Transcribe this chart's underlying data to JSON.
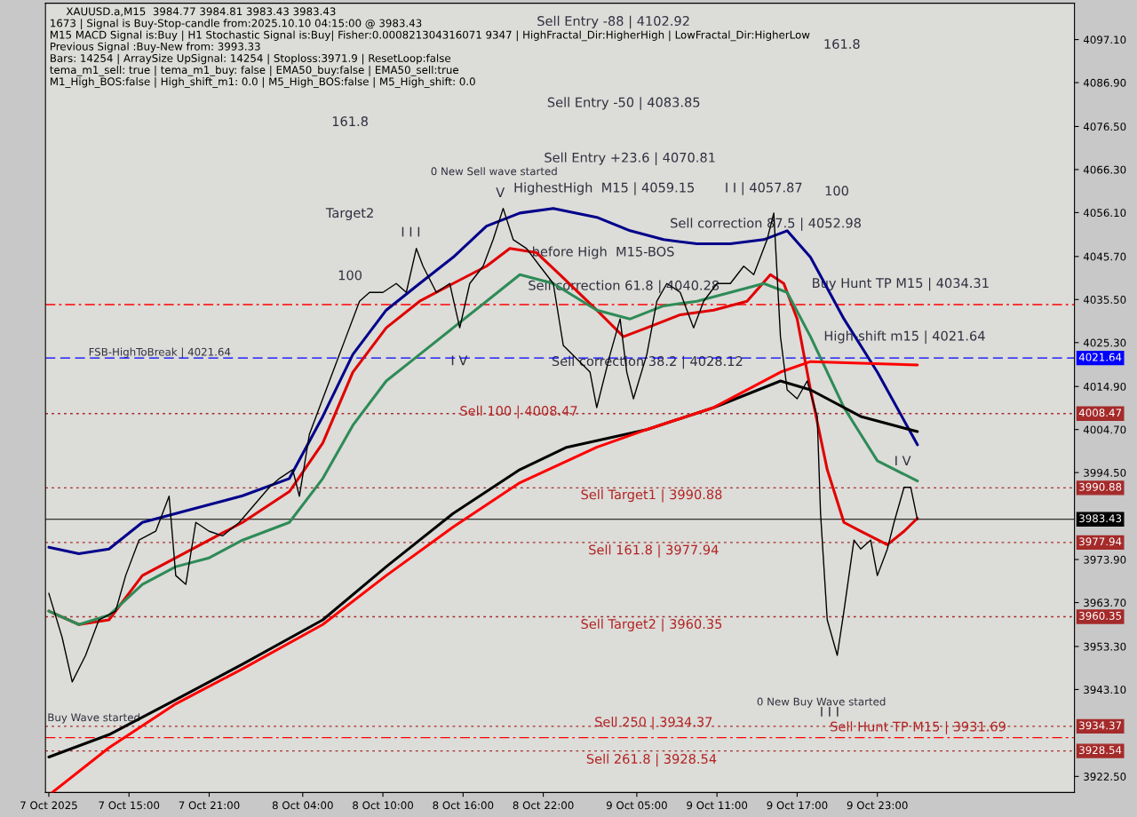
{
  "chart_data": {
    "type": "line",
    "title": "XAUUSD.a,M15  3984.77 3984.81 3983.43 3983.43",
    "annotations": [
      "1673 | Signal is Buy-Stop-candle from:2025.10.10 04:15:00 @ 3983.43",
      "M15 MACD Signal is:Buy | H1 Stochastic Signal is:Buy| Fisher:0.000821304316071 9347 | HighFractal_Dir:HigherHigh | LowFractal_Dir:HigherLow",
      "Previous Signal :Buy-New from: 3993.33",
      "Bars: 14254 | ArraySize UpSignal: 14254 | Stoploss:3971.9 | ResetLoop:false",
      "tema_m1_sell: true | tema_m1_buy: false | EMA50_buy:false | EMA50_sell:true",
      "M1_High_BOS:false | High_shift_m1: 0.0 | M5_High_BOS:false | M5_High_shift: 0.0",
      "Sell Entry -88 | 4102.92",
      "Sell Entry -50 | 4083.85",
      "Sell Entry +23.6 | 4070.81",
      "HighestHigh  M15 | 4059.15",
      "I I | 4057.87",
      "Sell correction 87.5 | 4052.98",
      "Sell correction 61.8 | 4040.28",
      "Sell correction 38.2 | 4028.12",
      "before High  M15-BOS",
      "0 New Sell wave started",
      "0 New Buy Wave started",
      "Buy Wave started",
      "Target2",
      "161.8",
      "161.8",
      "100",
      "100",
      "I I I",
      "I V",
      "V",
      "I I I",
      "I V",
      "High-shift m15 | 4021.64",
      "FSB-HighToBreak | 4021.64",
      "Buy Hunt TP M15 | 4034.31",
      "Sell 100 | 4008.47",
      "Sell Target1 | 3990.88",
      "Sell 161.8 | 3977.94",
      "Sell Target2 | 3960.35",
      "Sell 250 | 3934.37",
      "Sell Hunt TP M15 | 3931.69",
      "Sell 261.8 | 3928.54"
    ],
    "xlim": [
      "2025-10-07T08:45",
      "2025-10-10T13:45"
    ],
    "xticks": [
      {
        "value": "2025-10-07T09:00",
        "label": "7 Oct 2025"
      },
      {
        "value": "2025-10-07T15:00",
        "label": "7 Oct 15:00"
      },
      {
        "value": "2025-10-07T21:00",
        "label": "7 Oct 21:00"
      },
      {
        "value": "2025-10-08T04:00",
        "label": "8 Oct 04:00"
      },
      {
        "value": "2025-10-08T10:00",
        "label": "8 Oct 10:00"
      },
      {
        "value": "2025-10-08T16:00",
        "label": "8 Oct 16:00"
      },
      {
        "value": "2025-10-08T22:00",
        "label": "8 Oct 22:00"
      },
      {
        "value": "2025-10-09T05:00",
        "label": "9 Oct 05:00"
      },
      {
        "value": "2025-10-09T11:00",
        "label": "9 Oct 11:00"
      },
      {
        "value": "2025-10-09T17:00",
        "label": "9 Oct 17:00"
      },
      {
        "value": "2025-10-09T23:00",
        "label": "9 Oct 23:00"
      }
    ],
    "ylim": [
      3918.7,
      4105.7
    ],
    "yticks": [
      {
        "value": 4097.1,
        "label": "4097.10"
      },
      {
        "value": 4086.9,
        "label": "4086.90"
      },
      {
        "value": 4076.5,
        "label": "4076.50"
      },
      {
        "value": 4066.3,
        "label": "4066.30"
      },
      {
        "value": 4056.1,
        "label": "4056.10"
      },
      {
        "value": 4045.7,
        "label": "4045.70"
      },
      {
        "value": 4035.5,
        "label": "4035.50"
      },
      {
        "value": 4025.3,
        "label": "4025.30"
      },
      {
        "value": 4014.9,
        "label": "4014.90"
      },
      {
        "value": 4004.7,
        "label": "4004.70"
      },
      {
        "value": 3994.5,
        "label": "3994.50"
      },
      {
        "value": 3973.9,
        "label": "3973.90"
      },
      {
        "value": 3963.7,
        "label": "3963.70"
      },
      {
        "value": 3953.3,
        "label": "3953.30"
      },
      {
        "value": 3943.1,
        "label": "3943.10"
      },
      {
        "value": 3922.5,
        "label": "3922.50"
      }
    ],
    "grid": false,
    "series": [
      {
        "color": "#000000",
        "x": [
          "2025-10-07T09:00",
          "2025-10-07T10:00",
          "2025-10-07T10:45",
          "2025-10-07T11:45",
          "2025-10-07T12:45",
          "2025-10-07T14:00",
          "2025-10-07T14:45",
          "2025-10-07T15:45",
          "2025-10-07T17:00",
          "2025-10-07T18:00",
          "2025-10-07T18:30",
          "2025-10-07T19:15",
          "2025-10-07T20:00",
          "2025-10-07T21:00",
          "2025-10-07T22:00",
          "2025-10-07T23:15",
          "2025-10-08T01:30",
          "2025-10-08T02:15",
          "2025-10-08T03:15",
          "2025-10-08T03:45",
          "2025-10-08T04:30",
          "2025-10-08T05:30",
          "2025-10-08T06:15",
          "2025-10-08T07:15",
          "2025-10-08T08:15",
          "2025-10-08T09:00",
          "2025-10-08T10:00",
          "2025-10-08T11:00",
          "2025-10-08T11:45",
          "2025-10-08T12:30",
          "2025-10-08T13:00",
          "2025-10-08T14:00",
          "2025-10-08T15:00",
          "2025-10-08T15:45",
          "2025-10-08T16:30",
          "2025-10-08T17:30",
          "2025-10-08T18:15",
          "2025-10-08T19:00",
          "2025-10-08T19:45",
          "2025-10-08T20:45",
          "2025-10-08T21:45",
          "2025-10-08T22:45",
          "2025-10-08T23:30",
          "2025-10-09T01:30",
          "2025-10-09T02:00",
          "2025-10-09T03:00",
          "2025-10-09T03:45",
          "2025-10-09T04:15",
          "2025-10-09T04:45",
          "2025-10-09T05:45",
          "2025-10-09T06:30",
          "2025-10-09T07:15",
          "2025-10-09T08:15",
          "2025-10-09T09:15",
          "2025-10-09T10:00",
          "2025-10-09T11:00",
          "2025-10-09T12:00",
          "2025-10-09T13:00",
          "2025-10-09T13:45",
          "2025-10-09T14:45",
          "2025-10-09T15:15",
          "2025-10-09T15:45",
          "2025-10-09T16:15",
          "2025-10-09T17:00",
          "2025-10-09T17:45",
          "2025-10-09T18:30",
          "2025-10-09T18:45",
          "2025-10-09T19:15",
          "2025-10-09T20:00",
          "2025-10-09T20:30",
          "2025-10-09T21:15",
          "2025-10-09T21:45",
          "2025-10-09T22:30",
          "2025-10-09T23:00",
          "2025-10-09T23:45",
          "2025-10-10T00:15",
          "2025-10-10T01:00",
          "2025-10-10T01:30",
          "2025-10-10T02:00"
        ],
        "values": [
          3965.9,
          3955.4,
          3944.9,
          3951.2,
          3959.6,
          3961.7,
          3970.1,
          3978.5,
          3980.6,
          3988.9,
          3970.1,
          3968.0,
          3982.7,
          3980.6,
          3979.5,
          3982.7,
          3991.0,
          3993.1,
          3995.2,
          3988.9,
          4003.6,
          4012.0,
          4018.3,
          4026.7,
          4035.1,
          4037.2,
          4037.2,
          4039.3,
          4037.2,
          4047.6,
          4043.4,
          4037.2,
          4039.3,
          4028.8,
          4039.3,
          4043.4,
          4049.7,
          4057.1,
          4049.7,
          4047.6,
          4043.4,
          4039.3,
          4024.6,
          4018.3,
          4009.9,
          4022.5,
          4030.9,
          4018.3,
          4012.0,
          4022.5,
          4035.1,
          4039.3,
          4037.2,
          4028.8,
          4035.1,
          4039.3,
          4039.3,
          4043.4,
          4041.4,
          4049.7,
          4056.0,
          4026.7,
          4014.1,
          4012.0,
          4016.2,
          4007.8,
          3984.8,
          3959.6,
          3951.2,
          3961.7,
          3978.5,
          3976.4,
          3978.5,
          3970.1,
          3976.4,
          3982.7,
          3991.0,
          3991.0,
          3983.3
        ]
      },
      {
        "color": "#e00000",
        "x": [
          "2025-10-07T09:00",
          "2025-10-07T11:15",
          "2025-10-07T13:30",
          "2025-10-07T16:00",
          "2025-10-07T18:30",
          "2025-10-07T21:00",
          "2025-10-07T23:30",
          "2025-10-08T03:00",
          "2025-10-08T05:30",
          "2025-10-08T07:45",
          "2025-10-08T10:15",
          "2025-10-08T12:45",
          "2025-10-08T15:15",
          "2025-10-08T17:45",
          "2025-10-08T19:30",
          "2025-10-08T21:30",
          "2025-10-08T23:15",
          "2025-10-09T02:00",
          "2025-10-09T04:00",
          "2025-10-09T05:45",
          "2025-10-09T08:15",
          "2025-10-09T10:45",
          "2025-10-09T13:15",
          "2025-10-09T15:00",
          "2025-10-09T16:00",
          "2025-10-09T17:00",
          "2025-10-09T18:00",
          "2025-10-09T19:15",
          "2025-10-09T20:30",
          "2025-10-09T21:45",
          "2025-10-09T23:45",
          "2025-10-10T01:00",
          "2025-10-10T02:00"
        ],
        "values": [
          3961.7,
          3958.5,
          3959.6,
          3970.1,
          3974.3,
          3978.5,
          3982.7,
          3990.0,
          4001.5,
          4018.3,
          4028.8,
          4035.1,
          4039.3,
          4043.4,
          4047.6,
          4046.6,
          4041.4,
          4033.0,
          4026.7,
          4028.8,
          4031.9,
          4033.0,
          4035.1,
          4041.4,
          4039.3,
          4030.9,
          4014.1,
          3995.2,
          3982.7,
          3980.6,
          3977.4,
          3980.6,
          3983.7
        ]
      },
      {
        "color": "#00008b",
        "x": [
          "2025-10-07T09:00",
          "2025-10-07T11:15",
          "2025-10-07T13:30",
          "2025-10-07T16:00",
          "2025-10-07T18:30",
          "2025-10-07T21:00",
          "2025-10-07T23:30",
          "2025-10-08T03:00",
          "2025-10-08T05:30",
          "2025-10-08T07:45",
          "2025-10-08T10:15",
          "2025-10-08T12:45",
          "2025-10-08T15:15",
          "2025-10-08T17:45",
          "2025-10-08T20:15",
          "2025-10-08T22:45",
          "2025-10-09T02:00",
          "2025-10-09T04:30",
          "2025-10-09T07:00",
          "2025-10-09T09:30",
          "2025-10-09T12:00",
          "2025-10-09T14:30",
          "2025-10-09T16:15",
          "2025-10-09T18:00",
          "2025-10-09T20:30",
          "2025-10-09T23:00",
          "2025-10-10T02:00"
        ],
        "values": [
          3976.8,
          3975.3,
          3976.4,
          3982.7,
          3984.8,
          3986.9,
          3989.0,
          3993.1,
          4007.8,
          4022.5,
          4033.0,
          4039.3,
          4045.5,
          4052.9,
          4056.0,
          4057.1,
          4055.0,
          4051.8,
          4049.7,
          4048.7,
          4048.7,
          4049.7,
          4051.8,
          4045.5,
          4030.9,
          4018.3,
          4001.1
        ]
      },
      {
        "color": "#2e8b57",
        "x": [
          "2025-10-07T09:00",
          "2025-10-07T11:15",
          "2025-10-07T13:30",
          "2025-10-07T16:00",
          "2025-10-07T18:30",
          "2025-10-07T21:00",
          "2025-10-07T23:30",
          "2025-10-08T03:00",
          "2025-10-08T05:30",
          "2025-10-08T07:45",
          "2025-10-08T10:15",
          "2025-10-08T12:45",
          "2025-10-08T15:15",
          "2025-10-08T17:45",
          "2025-10-08T20:15",
          "2025-10-08T22:45",
          "2025-10-09T02:00",
          "2025-10-09T04:30",
          "2025-10-09T07:00",
          "2025-10-09T09:30",
          "2025-10-09T12:00",
          "2025-10-09T14:30",
          "2025-10-09T16:15",
          "2025-10-09T18:00",
          "2025-10-09T20:30",
          "2025-10-09T23:00",
          "2025-10-10T02:00"
        ],
        "values": [
          3961.7,
          3958.5,
          3960.7,
          3968.0,
          3972.2,
          3974.3,
          3978.5,
          3982.7,
          3993.1,
          4005.7,
          4016.2,
          4022.5,
          4028.8,
          4035.1,
          4041.4,
          4039.3,
          4033.0,
          4030.9,
          4034.0,
          4035.1,
          4037.2,
          4039.3,
          4037.2,
          4026.7,
          4009.9,
          3997.3,
          3992.5
        ]
      },
      {
        "color": "#000000",
        "x": [
          "2025-10-07T09:00",
          "2025-10-07T13:30",
          "2025-10-07T18:30",
          "2025-10-07T23:30",
          "2025-10-08T05:30",
          "2025-10-08T10:15",
          "2025-10-08T15:15",
          "2025-10-08T20:15",
          "2025-10-08T23:45",
          "2025-10-09T05:45",
          "2025-10-09T10:45",
          "2025-10-09T15:45",
          "2025-10-09T18:00",
          "2025-10-09T21:45",
          "2025-10-10T02:00"
        ],
        "values": [
          3927.1,
          3932.4,
          3940.7,
          3949.1,
          3959.6,
          3972.2,
          3984.8,
          3995.2,
          4000.5,
          4004.7,
          4009.9,
          4016.2,
          4014.1,
          4007.8,
          4004.2
        ]
      },
      {
        "color": "#ff0000",
        "x": [
          "2025-10-07T09:15",
          "2025-10-07T13:30",
          "2025-10-07T18:30",
          "2025-10-07T23:30",
          "2025-10-08T05:30",
          "2025-10-08T10:15",
          "2025-10-08T15:15",
          "2025-10-08T20:15",
          "2025-10-09T02:00",
          "2025-10-09T05:45",
          "2025-10-09T10:45",
          "2025-10-09T15:45",
          "2025-10-09T18:00",
          "2025-10-09T21:45",
          "2025-10-10T02:00"
        ],
        "values": [
          3918.7,
          3929.3,
          3939.7,
          3948.0,
          3958.5,
          3970.1,
          3981.6,
          3992.1,
          4000.5,
          4004.7,
          4009.9,
          4018.3,
          4020.8,
          4020.4,
          4020.0
        ]
      }
    ],
    "ref_lines": [
      {
        "axis": "y",
        "value": 4034.31,
        "label": null,
        "color": "#ff0000",
        "line_style": "dashdot"
      },
      {
        "axis": "y",
        "value": 4021.64,
        "label": "4021.64",
        "color": "#0000ff",
        "line_style": "dashed"
      },
      {
        "axis": "y",
        "value": 4008.47,
        "label": "4008.47",
        "color": "#a52a2a",
        "line_style": "dotted"
      },
      {
        "axis": "y",
        "value": 3990.88,
        "label": "3990.88",
        "color": "#a52a2a",
        "line_style": "dotted"
      },
      {
        "axis": "y",
        "value": 3983.43,
        "label": "3983.43",
        "color": "#000000",
        "line_style": "solid"
      },
      {
        "axis": "y",
        "value": 3977.94,
        "label": "3977.94",
        "color": "#a52a2a",
        "line_style": "dotted"
      },
      {
        "axis": "y",
        "value": 3960.35,
        "label": "3960.35",
        "color": "#a52a2a",
        "line_style": "dotted"
      },
      {
        "axis": "y",
        "value": 3934.37,
        "label": "3934.37",
        "color": "#a52a2a",
        "line_style": "dotted"
      },
      {
        "axis": "y",
        "value": 3931.69,
        "label": null,
        "color": "#ff0000",
        "line_style": "dashdot"
      },
      {
        "axis": "y",
        "value": 3928.54,
        "label": "3928.54",
        "color": "#a52a2a",
        "line_style": "dotted"
      }
    ]
  }
}
